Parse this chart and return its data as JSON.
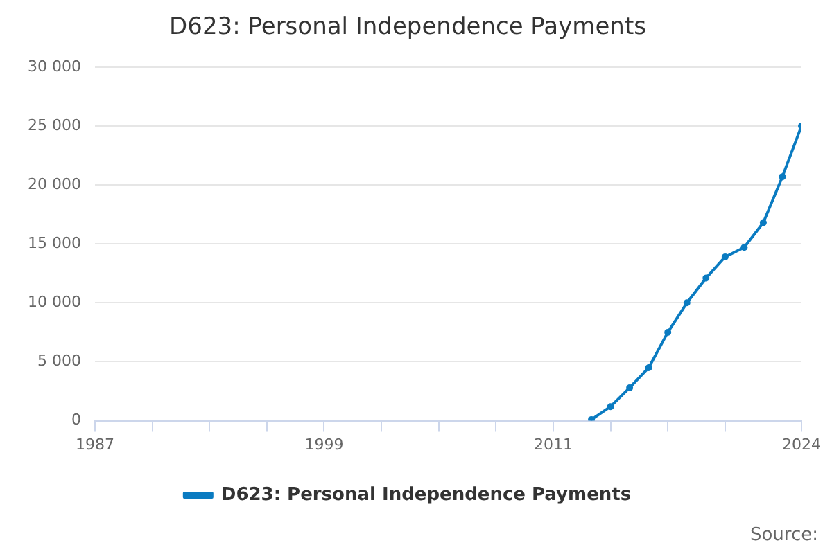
{
  "chart_data": {
    "type": "line",
    "title": "D623: Personal Independence Payments",
    "x": [
      2013,
      2014,
      2015,
      2016,
      2017,
      2018,
      2019,
      2020,
      2021,
      2022,
      2023,
      2024
    ],
    "series": [
      {
        "name": "D623: Personal Independence Payments",
        "color": "#0a7bc1",
        "values": [
          100,
          1200,
          2800,
          4500,
          7500,
          10000,
          12100,
          13900,
          14700,
          16800,
          20700,
          25000
        ]
      }
    ],
    "xlim": [
      1987,
      2024
    ],
    "xticks": [
      1987,
      {
        "value": 1990,
        "label": null
      },
      {
        "value": 1993,
        "label": null
      },
      {
        "value": 1996,
        "label": null
      },
      1999,
      {
        "value": 2002,
        "label": null
      },
      {
        "value": 2005,
        "label": null
      },
      {
        "value": 2008,
        "label": null
      },
      2011,
      {
        "value": 2014,
        "label": null
      },
      {
        "value": 2017,
        "label": null
      },
      {
        "value": 2020,
        "label": null
      },
      2024
    ],
    "ylim": [
      0,
      30000
    ],
    "yticks": [
      {
        "value": 0,
        "label": "0"
      },
      {
        "value": 5000,
        "label": "5 000"
      },
      {
        "value": 10000,
        "label": "10 000"
      },
      {
        "value": 15000,
        "label": "15 000"
      },
      {
        "value": 20000,
        "label": "20 000"
      },
      {
        "value": 25000,
        "label": "25 000"
      },
      {
        "value": 30000,
        "label": "30 000"
      }
    ],
    "grid": "y",
    "legend": "bottom",
    "marker": "circle",
    "line_style": "solid",
    "annotations": [
      "Source:"
    ]
  }
}
